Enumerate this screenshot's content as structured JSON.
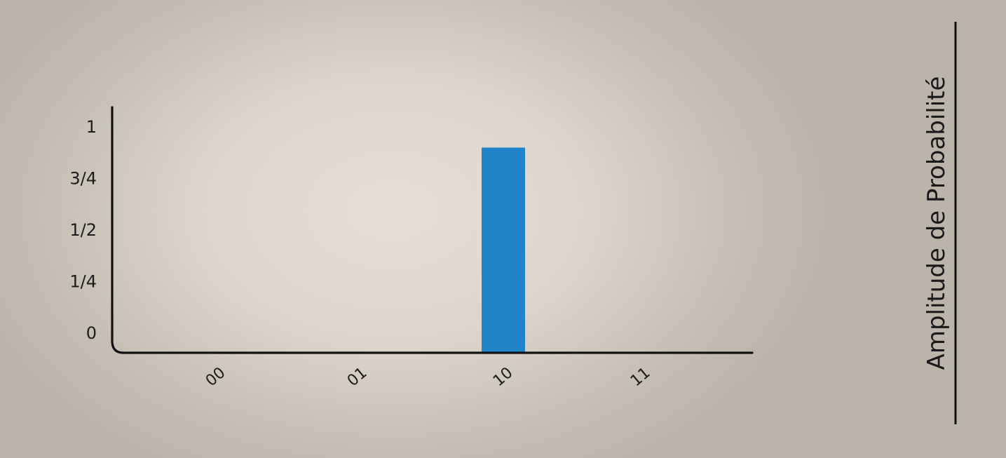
{
  "chart_data": {
    "type": "bar",
    "categories": [
      "00",
      "01",
      "10",
      "11"
    ],
    "values": [
      0,
      0,
      0.9,
      0
    ],
    "ylabel": "Amplitude de Probabilité",
    "xlabel": "",
    "ylim": [
      0,
      1
    ],
    "yticks": [
      {
        "value": 0,
        "label": "0"
      },
      {
        "value": 0.25,
        "label": "1/4"
      },
      {
        "value": 0.5,
        "label": "1/2"
      },
      {
        "value": 0.75,
        "label": "3/4"
      },
      {
        "value": 1,
        "label": "1"
      }
    ],
    "bar_color": "#2383c9",
    "grid": false,
    "legend": "none"
  }
}
